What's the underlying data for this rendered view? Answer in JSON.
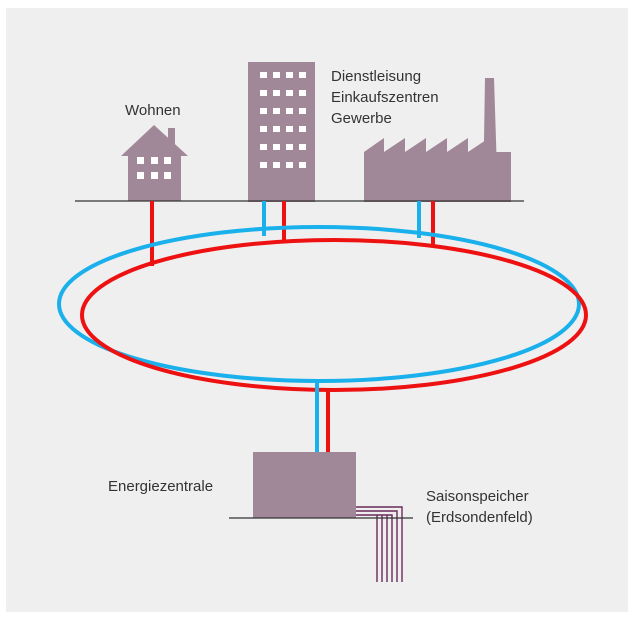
{
  "labels": {
    "residential": "Wohnen",
    "services_line1": "Dienstleisung",
    "services_line2": "Einkaufszentren",
    "services_line3": "Gewerbe",
    "energy_center": "Energiezentrale",
    "storage_line1": "Saisonspeicher",
    "storage_line2": "(Erdsondenfeld)"
  },
  "colors": {
    "background": "#efefef",
    "building": "#a08898",
    "window": "#ffffff",
    "cold_pipe": "#1ab0ec",
    "warm_pipe": "#ee1111",
    "ground_line": "#333333",
    "probe": "#6a2a5a"
  }
}
